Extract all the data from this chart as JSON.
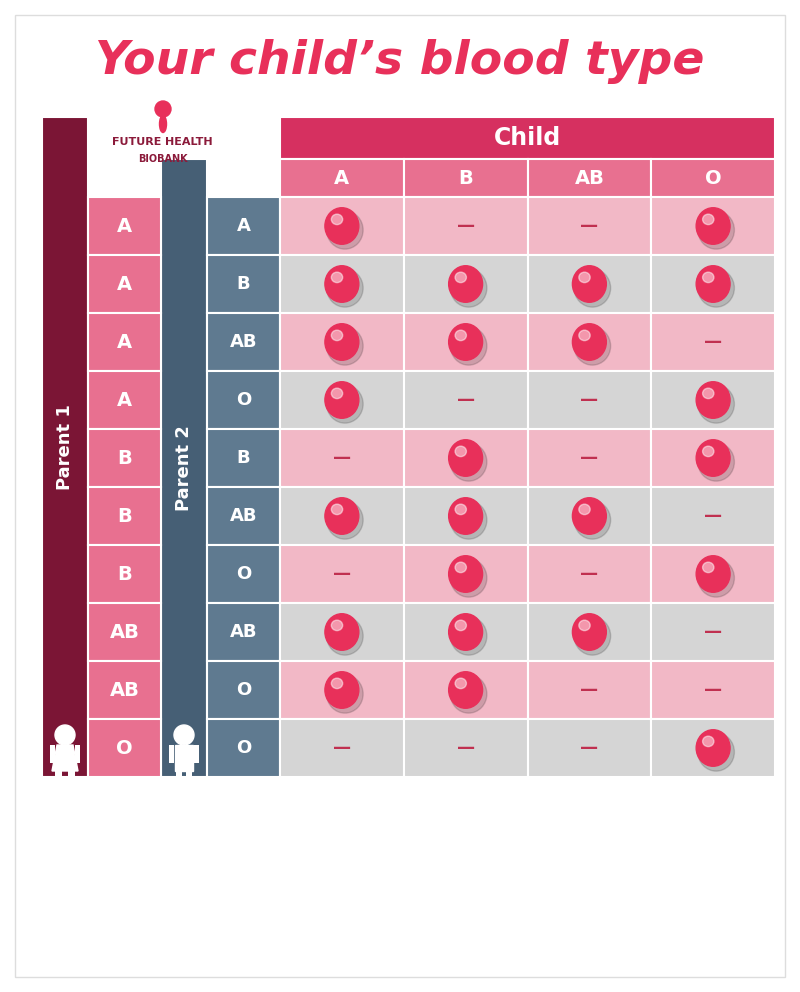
{
  "title": "Your child’s blood type",
  "title_color": "#E8305A",
  "child_header": "Child",
  "child_header_bg": "#D63060",
  "child_cols": [
    "A",
    "B",
    "AB",
    "O"
  ],
  "parent1_label": "Parent 1",
  "parent2_label": "Parent 2",
  "parent1_bg": "#7B1535",
  "parent2_bg": "#465F75",
  "parent1_col_bg": "#E87090",
  "parent2_col_bg": "#5F7A90",
  "rows": [
    {
      "p1": "A",
      "p2": "A",
      "cells": [
        1,
        0,
        0,
        1
      ]
    },
    {
      "p1": "A",
      "p2": "B",
      "cells": [
        1,
        1,
        1,
        1
      ]
    },
    {
      "p1": "A",
      "p2": "AB",
      "cells": [
        1,
        1,
        1,
        0
      ]
    },
    {
      "p1": "A",
      "p2": "O",
      "cells": [
        1,
        0,
        0,
        1
      ]
    },
    {
      "p1": "B",
      "p2": "B",
      "cells": [
        0,
        1,
        0,
        1
      ]
    },
    {
      "p1": "B",
      "p2": "AB",
      "cells": [
        1,
        1,
        1,
        0
      ]
    },
    {
      "p1": "B",
      "p2": "O",
      "cells": [
        0,
        1,
        0,
        1
      ]
    },
    {
      "p1": "AB",
      "p2": "AB",
      "cells": [
        1,
        1,
        1,
        0
      ]
    },
    {
      "p1": "AB",
      "p2": "O",
      "cells": [
        1,
        1,
        0,
        0
      ]
    },
    {
      "p1": "O",
      "p2": "O",
      "cells": [
        0,
        0,
        0,
        1
      ]
    }
  ],
  "ball_color": "#E8305A",
  "dash_color": "#C03050",
  "cell_bg_pink": "#F2B8C6",
  "cell_bg_grey": "#D5D5D5",
  "header_col_bg": "#E87090",
  "background_color": "#FFFFFF",
  "logo_color": "#8B1A3A",
  "logo_pink": "#E8305A"
}
